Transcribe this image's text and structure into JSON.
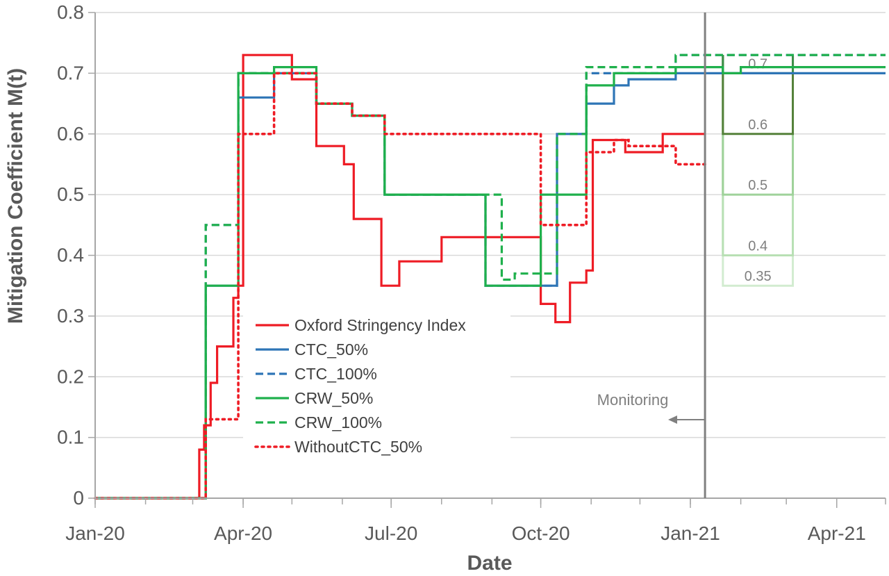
{
  "chart_data": {
    "type": "line",
    "title": "",
    "xlabel": "Date",
    "ylabel": "Mitigation Coefficient M(t)",
    "ylim": [
      0,
      0.8
    ],
    "yticks": [
      "0",
      "0.1",
      "0.2",
      "0.3",
      "0.4",
      "0.5",
      "0.6",
      "0.7",
      "0.8"
    ],
    "xlim": [
      "2020-01-01",
      "2021-05-01"
    ],
    "xtick_labels": [
      "Jan-20",
      "Apr-20",
      "Jul-20",
      "Oct-20",
      "Jan-21",
      "Apr-21"
    ],
    "xtick_dates": [
      "2020-01-01",
      "2020-04-01",
      "2020-07-01",
      "2020-10-01",
      "2021-01-01",
      "2021-04-01"
    ],
    "grid": "horizontal",
    "legend_placement": "lower-center",
    "monitoring_date": "2021-01-10",
    "monitoring_label": "Monitoring",
    "series": [
      {
        "name": "Oxford Stringency Index",
        "color": "#ee1c25",
        "dash": "solid",
        "points": [
          [
            "2020-01-01",
            0
          ],
          [
            "2020-03-05",
            0
          ],
          [
            "2020-03-05",
            0.08
          ],
          [
            "2020-03-08",
            0.08
          ],
          [
            "2020-03-08",
            0.12
          ],
          [
            "2020-03-12",
            0.12
          ],
          [
            "2020-03-12",
            0.19
          ],
          [
            "2020-03-16",
            0.19
          ],
          [
            "2020-03-16",
            0.25
          ],
          [
            "2020-03-26",
            0.25
          ],
          [
            "2020-03-26",
            0.33
          ],
          [
            "2020-03-29",
            0.33
          ],
          [
            "2020-03-29",
            0.35
          ],
          [
            "2020-04-01",
            0.35
          ],
          [
            "2020-04-01",
            0.73
          ],
          [
            "2020-05-01",
            0.73
          ],
          [
            "2020-05-01",
            0.69
          ],
          [
            "2020-05-16",
            0.69
          ],
          [
            "2020-05-16",
            0.58
          ],
          [
            "2020-06-02",
            0.58
          ],
          [
            "2020-06-02",
            0.55
          ],
          [
            "2020-06-08",
            0.55
          ],
          [
            "2020-06-08",
            0.46
          ],
          [
            "2020-06-25",
            0.46
          ],
          [
            "2020-06-25",
            0.35
          ],
          [
            "2020-07-06",
            0.35
          ],
          [
            "2020-07-06",
            0.39
          ],
          [
            "2020-08-01",
            0.39
          ],
          [
            "2020-08-01",
            0.43
          ],
          [
            "2020-10-01",
            0.43
          ],
          [
            "2020-10-01",
            0.32
          ],
          [
            "2020-10-10",
            0.32
          ],
          [
            "2020-10-10",
            0.29
          ],
          [
            "2020-10-19",
            0.29
          ],
          [
            "2020-10-19",
            0.355
          ],
          [
            "2020-10-29",
            0.355
          ],
          [
            "2020-10-29",
            0.375
          ],
          [
            "2020-11-02",
            0.375
          ],
          [
            "2020-11-02",
            0.59
          ],
          [
            "2020-11-22",
            0.59
          ],
          [
            "2020-11-22",
            0.57
          ],
          [
            "2020-12-15",
            0.57
          ],
          [
            "2020-12-15",
            0.6
          ],
          [
            "2021-01-10",
            0.6
          ]
        ]
      },
      {
        "name": "CTC_50%",
        "color": "#2e75b6",
        "dash": "solid",
        "points": [
          [
            "2020-01-01",
            0
          ],
          [
            "2020-03-09",
            0
          ],
          [
            "2020-03-09",
            0.35
          ],
          [
            "2020-03-29",
            0.35
          ],
          [
            "2020-03-29",
            0.66
          ],
          [
            "2020-04-20",
            0.66
          ],
          [
            "2020-04-20",
            0.7
          ],
          [
            "2020-05-16",
            0.7
          ],
          [
            "2020-05-16",
            0.65
          ],
          [
            "2020-06-07",
            0.65
          ],
          [
            "2020-06-07",
            0.63
          ],
          [
            "2020-06-27",
            0.63
          ],
          [
            "2020-06-27",
            0.5
          ],
          [
            "2020-08-28",
            0.5
          ],
          [
            "2020-08-28",
            0.35
          ],
          [
            "2020-10-11",
            0.35
          ],
          [
            "2020-10-11",
            0.6
          ],
          [
            "2020-10-29",
            0.6
          ],
          [
            "2020-10-29",
            0.65
          ],
          [
            "2020-11-15",
            0.65
          ],
          [
            "2020-11-15",
            0.68
          ],
          [
            "2020-11-24",
            0.68
          ],
          [
            "2020-11-24",
            0.69
          ],
          [
            "2020-12-23",
            0.69
          ],
          [
            "2020-12-23",
            0.7
          ],
          [
            "2021-05-01",
            0.7
          ]
        ]
      },
      {
        "name": "CTC_100%",
        "color": "#2e75b6",
        "dash": "dashed",
        "points": [
          [
            "2020-01-01",
            0
          ],
          [
            "2020-03-09",
            0
          ],
          [
            "2020-03-09",
            0.45
          ],
          [
            "2020-03-29",
            0.45
          ],
          [
            "2020-03-29",
            0.7
          ],
          [
            "2020-05-16",
            0.7
          ],
          [
            "2020-05-16",
            0.65
          ],
          [
            "2020-06-07",
            0.65
          ],
          [
            "2020-06-07",
            0.63
          ],
          [
            "2020-06-27",
            0.63
          ],
          [
            "2020-06-27",
            0.5
          ],
          [
            "2020-08-28",
            0.5
          ],
          [
            "2020-08-28",
            0.35
          ],
          [
            "2020-10-11",
            0.35
          ],
          [
            "2020-10-11",
            0.6
          ],
          [
            "2020-10-29",
            0.6
          ],
          [
            "2020-10-29",
            0.7
          ],
          [
            "2020-12-23",
            0.7
          ],
          [
            "2020-12-23",
            0.73
          ],
          [
            "2021-05-01",
            0.73
          ]
        ]
      },
      {
        "name": "CRW_50%",
        "color": "#1fb04c",
        "dash": "solid",
        "points": [
          [
            "2020-01-01",
            0
          ],
          [
            "2020-03-09",
            0
          ],
          [
            "2020-03-09",
            0.35
          ],
          [
            "2020-03-29",
            0.35
          ],
          [
            "2020-03-29",
            0.7
          ],
          [
            "2020-04-20",
            0.7
          ],
          [
            "2020-04-20",
            0.71
          ],
          [
            "2020-05-16",
            0.71
          ],
          [
            "2020-05-16",
            0.65
          ],
          [
            "2020-06-07",
            0.65
          ],
          [
            "2020-06-07",
            0.63
          ],
          [
            "2020-06-27",
            0.63
          ],
          [
            "2020-06-27",
            0.5
          ],
          [
            "2020-08-28",
            0.5
          ],
          [
            "2020-08-28",
            0.35
          ],
          [
            "2020-10-01",
            0.35
          ],
          [
            "2020-10-01",
            0.5
          ],
          [
            "2020-10-29",
            0.5
          ],
          [
            "2020-10-29",
            0.68
          ],
          [
            "2020-11-15",
            0.68
          ],
          [
            "2020-11-15",
            0.7
          ],
          [
            "2020-12-23",
            0.7
          ],
          [
            "2020-12-23",
            0.71
          ],
          [
            "2021-01-21",
            0.71
          ],
          [
            "2021-01-21",
            0.7
          ],
          [
            "2021-02-01",
            0.7
          ],
          [
            "2021-02-01",
            0.71
          ],
          [
            "2021-05-01",
            0.71
          ]
        ]
      },
      {
        "name": "CRW_100%",
        "color": "#1fb04c",
        "dash": "dashed",
        "points": [
          [
            "2020-01-01",
            0
          ],
          [
            "2020-03-09",
            0
          ],
          [
            "2020-03-09",
            0.45
          ],
          [
            "2020-03-29",
            0.45
          ],
          [
            "2020-03-29",
            0.7
          ],
          [
            "2020-05-16",
            0.7
          ],
          [
            "2020-05-16",
            0.65
          ],
          [
            "2020-06-07",
            0.65
          ],
          [
            "2020-06-07",
            0.63
          ],
          [
            "2020-06-27",
            0.63
          ],
          [
            "2020-06-27",
            0.5
          ],
          [
            "2020-09-07",
            0.5
          ],
          [
            "2020-09-07",
            0.36
          ],
          [
            "2020-09-15",
            0.36
          ],
          [
            "2020-09-15",
            0.37
          ],
          [
            "2020-10-11",
            0.37
          ],
          [
            "2020-10-11",
            0.6
          ],
          [
            "2020-10-29",
            0.6
          ],
          [
            "2020-10-29",
            0.71
          ],
          [
            "2020-12-23",
            0.71
          ],
          [
            "2020-12-23",
            0.73
          ],
          [
            "2021-05-01",
            0.73
          ]
        ]
      },
      {
        "name": "WithoutCTC_50%",
        "color": "#ee1c25",
        "dash": "dotted",
        "points": [
          [
            "2020-01-01",
            0
          ],
          [
            "2020-03-09",
            0
          ],
          [
            "2020-03-09",
            0.13
          ],
          [
            "2020-03-29",
            0.13
          ],
          [
            "2020-03-29",
            0.6
          ],
          [
            "2020-04-20",
            0.6
          ],
          [
            "2020-04-20",
            0.7
          ],
          [
            "2020-05-16",
            0.7
          ],
          [
            "2020-05-16",
            0.65
          ],
          [
            "2020-06-07",
            0.65
          ],
          [
            "2020-06-07",
            0.63
          ],
          [
            "2020-06-27",
            0.63
          ],
          [
            "2020-06-27",
            0.6
          ],
          [
            "2020-10-01",
            0.6
          ],
          [
            "2020-10-01",
            0.45
          ],
          [
            "2020-10-29",
            0.45
          ],
          [
            "2020-10-29",
            0.57
          ],
          [
            "2020-11-15",
            0.57
          ],
          [
            "2020-11-15",
            0.59
          ],
          [
            "2020-11-24",
            0.59
          ],
          [
            "2020-11-24",
            0.58
          ],
          [
            "2020-12-23",
            0.58
          ],
          [
            "2020-12-23",
            0.55
          ],
          [
            "2021-01-10",
            0.55
          ]
        ]
      }
    ],
    "scenarios": {
      "x_start": "2021-01-21",
      "x_end": "2021-03-05",
      "base_value": 0.73,
      "levels": [
        {
          "label": "0.7",
          "value": 0.7,
          "color": "#3f8f4a"
        },
        {
          "label": "0.6",
          "value": 0.6,
          "color": "#54813a"
        },
        {
          "label": "0.5",
          "value": 0.5,
          "color": "#9fd29a"
        },
        {
          "label": "0.4",
          "value": 0.4,
          "color": "#b8e0b4"
        },
        {
          "label": "0.35",
          "value": 0.35,
          "color": "#d2ecd0"
        }
      ]
    }
  }
}
